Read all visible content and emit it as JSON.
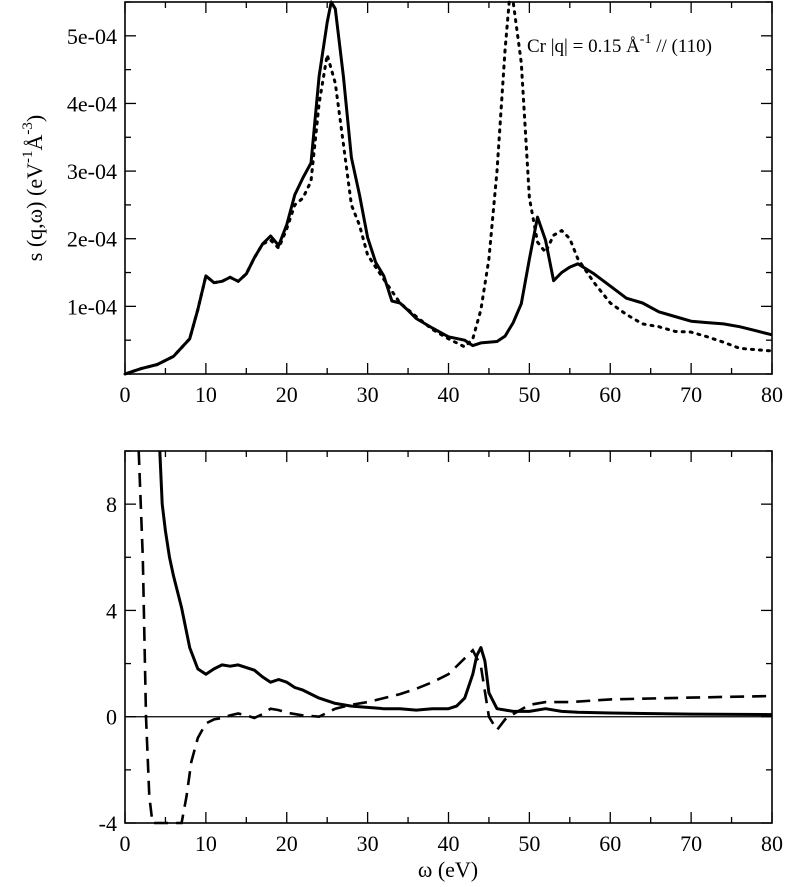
{
  "chart_data": [
    {
      "type": "line",
      "title": "",
      "xlabel": "",
      "ylabel": "s (q,ω)  (eV",
      "ylabel_sup1": "-1",
      "ylabel_mid": "Å",
      "ylabel_sup2": "-3",
      "ylabel_end": ")",
      "xlim": [
        0,
        80
      ],
      "ylim": [
        0,
        0.00055
      ],
      "xticks": [
        0,
        10,
        20,
        30,
        40,
        50,
        60,
        70,
        80
      ],
      "yticks": [
        0.0001,
        0.0002,
        0.0003,
        0.0004,
        0.0005
      ],
      "ytick_labels": [
        "1e-04",
        "2e-04",
        "3e-04",
        "4e-04",
        "5e-04"
      ],
      "annotation": {
        "text": "Cr   |q| = 0.15 Å",
        "sup": "-1",
        "rest": " // (110)"
      },
      "series": [
        {
          "style": "solid",
          "x": [
            0,
            2,
            4,
            6,
            8,
            9,
            10,
            11,
            12,
            13,
            14,
            15,
            16,
            17,
            18,
            19,
            20,
            21,
            22,
            23,
            24,
            25,
            25.5,
            26,
            27,
            28,
            29,
            30,
            31,
            32,
            33,
            34,
            35,
            36,
            38,
            40,
            42,
            43,
            44,
            46,
            47,
            48,
            49,
            50,
            51,
            52,
            53,
            54,
            55,
            56,
            58,
            60,
            62,
            64,
            66,
            68,
            70,
            72,
            74,
            76,
            78,
            80
          ],
          "y": [
            0.0,
            8e-06,
            1.4e-05,
            2.6e-05,
            5.2e-05,
            9.5e-05,
            0.000145,
            0.000135,
            0.000137,
            0.000143,
            0.000137,
            0.000148,
            0.000172,
            0.000192,
            0.000204,
            0.00019,
            0.000221,
            0.000265,
            0.00029,
            0.000312,
            0.00044,
            0.00052,
            0.000552,
            0.00054,
            0.00044,
            0.00032,
            0.000265,
            0.000202,
            0.000165,
            0.000145,
            0.000108,
            0.000105,
            9.4e-05,
            8.2e-05,
            6.8e-05,
            5.5e-05,
            5e-05,
            4.2e-05,
            4.6e-05,
            4.8e-05,
            5.6e-05,
            7.6e-05,
            0.000104,
            0.00017,
            0.000232,
            0.000198,
            0.000138,
            0.00015,
            0.000158,
            0.000163,
            0.000148,
            0.00013,
            0.000112,
            0.000105,
            9.2e-05,
            8.5e-05,
            7.8e-05,
            7.6e-05,
            7.4e-05,
            7e-05,
            6.4e-05,
            5.8e-05
          ]
        },
        {
          "style": "dotted",
          "x": [
            0,
            2,
            4,
            6,
            8,
            9,
            10,
            11,
            12,
            13,
            14,
            15,
            16,
            17,
            18,
            19,
            20,
            21,
            22,
            23,
            24,
            25,
            26,
            27,
            28,
            29,
            30,
            32,
            34,
            36,
            38,
            40,
            42,
            43,
            44,
            45,
            46,
            47,
            47.5,
            48,
            49,
            50,
            51,
            52,
            53,
            54,
            55,
            56,
            58,
            60,
            62,
            64,
            66,
            68,
            70,
            72,
            74,
            76,
            78,
            80
          ],
          "y": [
            0.0,
            8e-06,
            1.4e-05,
            2.6e-05,
            5.2e-05,
            9.5e-05,
            0.000145,
            0.000135,
            0.000137,
            0.000143,
            0.000137,
            0.000148,
            0.000172,
            0.000192,
            0.000198,
            0.000186,
            0.000215,
            0.00025,
            0.00026,
            0.000285,
            0.0004,
            0.000472,
            0.00043,
            0.00034,
            0.00025,
            0.00022,
            0.000176,
            0.00014,
            0.000105,
            8.5e-05,
            6.6e-05,
            5.2e-05,
            4e-05,
            5.2e-05,
            9.5e-05,
            0.00017,
            0.0003,
            0.00048,
            0.000578,
            0.000555,
            0.00046,
            0.00026,
            0.000195,
            0.00018,
            0.000205,
            0.000212,
            0.0002,
            0.00017,
            0.000135,
            0.000105,
            8.8e-05,
            7.4e-05,
            7e-05,
            6.3e-05,
            6.2e-05,
            5.5e-05,
            4.7e-05,
            3.8e-05,
            3.6e-05,
            3.4e-05
          ]
        }
      ]
    },
    {
      "type": "line",
      "title": "",
      "xlabel": "ω (eV)",
      "ylabel": "",
      "xlim": [
        0,
        80
      ],
      "ylim": [
        -4,
        10
      ],
      "xticks": [
        0,
        10,
        20,
        30,
        40,
        50,
        60,
        70,
        80
      ],
      "yticks": [
        -4,
        0,
        4,
        8
      ],
      "reference_line": 0,
      "series": [
        {
          "style": "solid",
          "x": [
            4.3,
            4.6,
            5,
            5.5,
            6,
            7,
            8,
            9,
            10,
            11,
            12,
            13,
            14,
            15,
            16,
            17,
            18,
            19,
            20,
            21,
            22,
            24,
            26,
            28,
            30,
            32,
            34,
            36,
            38,
            40,
            41,
            42,
            43,
            43.5,
            44,
            44.5,
            45,
            46,
            48,
            50,
            52,
            54,
            56,
            60,
            70,
            80
          ],
          "y": [
            10,
            8,
            7,
            6,
            5.3,
            4.1,
            2.6,
            1.8,
            1.6,
            1.8,
            1.95,
            1.9,
            1.95,
            1.85,
            1.75,
            1.5,
            1.3,
            1.4,
            1.3,
            1.1,
            1.0,
            0.7,
            0.5,
            0.4,
            0.35,
            0.3,
            0.3,
            0.25,
            0.3,
            0.3,
            0.4,
            0.7,
            1.6,
            2.3,
            2.6,
            2.1,
            0.9,
            0.3,
            0.2,
            0.2,
            0.3,
            0.2,
            0.17,
            0.14,
            0.1,
            0.08
          ]
        },
        {
          "style": "dashed",
          "x": [
            1.7,
            2.2,
            2.6,
            3.0,
            3.4,
            7.0,
            7.6,
            8.2,
            9,
            10,
            11,
            12,
            13,
            14,
            15,
            16,
            17,
            18,
            19,
            20,
            22,
            24,
            26,
            28,
            30,
            32,
            34,
            36,
            38,
            40,
            42,
            43,
            44,
            45,
            46,
            47,
            48,
            50,
            52,
            55,
            60,
            70,
            80
          ],
          "y": [
            10,
            6,
            0,
            -3,
            -4,
            -4,
            -3,
            -1.7,
            -0.8,
            -0.25,
            -0.1,
            -0.05,
            0.05,
            0.12,
            0.05,
            -0.05,
            0.1,
            0.3,
            0.25,
            0.15,
            0.05,
            0.0,
            0.3,
            0.45,
            0.55,
            0.7,
            0.85,
            1.05,
            1.3,
            1.6,
            2.2,
            2.5,
            1.9,
            0.0,
            -0.5,
            -0.1,
            0.1,
            0.45,
            0.55,
            0.55,
            0.65,
            0.72,
            0.78
          ]
        }
      ]
    }
  ]
}
